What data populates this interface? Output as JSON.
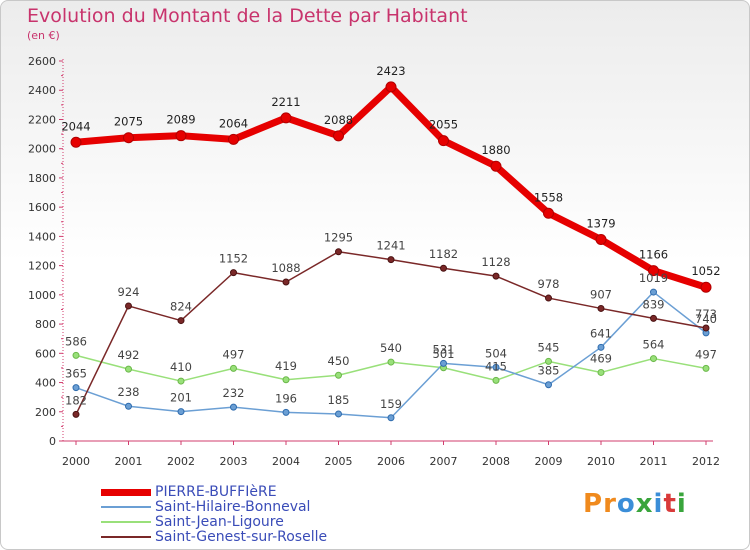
{
  "chart_data": {
    "type": "line",
    "title": "Evolution du Montant de la Dette par Habitant",
    "unit": "(en €)",
    "categories": [
      "2000",
      "2001",
      "2002",
      "2003",
      "2004",
      "2005",
      "2006",
      "2007",
      "2008",
      "2009",
      "2010",
      "2011",
      "2012"
    ],
    "ylim": [
      0,
      2600
    ],
    "yticks": [
      0,
      200,
      400,
      600,
      800,
      1000,
      1200,
      1400,
      1600,
      1800,
      2000,
      2200,
      2400,
      2600
    ],
    "grid": false,
    "legend_position": "bottom-left",
    "series": [
      {
        "name": "PIERRE-BUFFIèRE",
        "color": "#e60000",
        "values": [
          2044,
          2075,
          2089,
          2064,
          2211,
          2088,
          2423,
          2055,
          1880,
          1558,
          1379,
          1166,
          1052
        ]
      },
      {
        "name": "Saint-Hilaire-Bonneval",
        "color": "#6b9fd4",
        "values": [
          365,
          238,
          201,
          232,
          196,
          185,
          159,
          531,
          504,
          385,
          641,
          1019,
          740
        ]
      },
      {
        "name": "Saint-Jean-Ligoure",
        "color": "#99e07a",
        "values": [
          586,
          492,
          410,
          497,
          419,
          450,
          540,
          501,
          415,
          545,
          469,
          564,
          497
        ]
      },
      {
        "name": "Saint-Genest-sur-Roselle",
        "color": "#7a2828",
        "values": [
          182,
          924,
          824,
          1152,
          1088,
          1295,
          1241,
          1182,
          1128,
          978,
          907,
          839,
          773
        ]
      }
    ]
  },
  "logo": {
    "text": "Proxiti",
    "colors": [
      "#f08a1d",
      "#f08a1d",
      "#3b8ed8",
      "#39a53c",
      "#3b8ed8",
      "#d93a3a",
      "#39a53c"
    ]
  }
}
